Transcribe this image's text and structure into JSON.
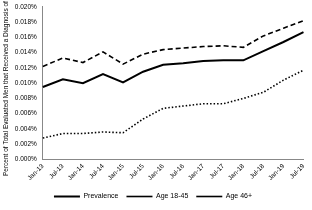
{
  "chart_data": {
    "type": "line",
    "y_label": "Percent of Total Evaluated Men that Received a Diagnosis of DE",
    "categories": [
      "Jan-13",
      "Jul-13",
      "Jan-14",
      "Jul-14",
      "Jan-15",
      "Jul-15",
      "Jan-16",
      "Jul-16",
      "Jan-17",
      "Jul-17",
      "Jan-18",
      "Jul-18",
      "Jan-19",
      "Jul-19"
    ],
    "series": [
      {
        "name": "Prevalence",
        "color": "#000000",
        "line_style": "solid",
        "values": [
          0.0095,
          0.0105,
          0.01,
          0.0112,
          0.0101,
          0.0115,
          0.0124,
          0.0126,
          0.0129,
          0.013,
          0.013,
          0.0142,
          0.0154,
          0.0167
        ]
      },
      {
        "name": "Age 18-45",
        "color": "#000000",
        "line_style": "dotted",
        "values": [
          0.0028,
          0.0034,
          0.0034,
          0.0036,
          0.0035,
          0.0053,
          0.0067,
          0.007,
          0.0073,
          0.0073,
          0.008,
          0.0088,
          0.0104,
          0.0117
        ]
      },
      {
        "name": "Age 46+",
        "color": "#000000",
        "line_style": "dashed",
        "values": [
          0.0122,
          0.0133,
          0.0127,
          0.0141,
          0.0125,
          0.0138,
          0.0144,
          0.0146,
          0.0148,
          0.0149,
          0.0147,
          0.0162,
          0.0172,
          0.0182
        ]
      }
    ],
    "ylim": [
      0,
      0.02
    ],
    "yticks": [
      {
        "value": 0,
        "label": "0.000%"
      },
      {
        "value": 0.002,
        "label": "0.002%"
      },
      {
        "value": 0.004,
        "label": "0.004%"
      },
      {
        "value": 0.006,
        "label": "0.006%"
      },
      {
        "value": 0.008,
        "label": "0.008%"
      },
      {
        "value": 0.01,
        "label": "0.010%"
      },
      {
        "value": 0.012,
        "label": "0.012%"
      },
      {
        "value": 0.014,
        "label": "0.014%"
      },
      {
        "value": 0.016,
        "label": "0.016%"
      },
      {
        "value": 0.018,
        "label": "0.018%"
      },
      {
        "value": 0.02,
        "label": "0.020%"
      }
    ],
    "grid": false,
    "legend": "bottom"
  }
}
